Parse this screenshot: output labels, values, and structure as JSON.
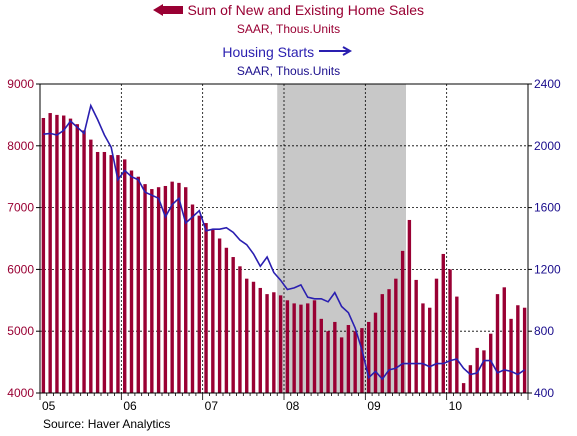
{
  "legend": {
    "bars_label": "Sum of New and Existing Home Sales",
    "bars_units": "SAAR, Thous.Units",
    "line_label": "Housing Starts",
    "line_units": "SAAR, Thous.Units"
  },
  "source": "Source: Haver Analytics",
  "colors": {
    "bars": "#990033",
    "line": "#2a1fb0",
    "recession": "#c8c8c8",
    "left_axis_text": "#990033",
    "right_axis_text": "#1a0d8c"
  },
  "chart_data": {
    "type": "bar",
    "x_tick_labels": [
      "05",
      "06",
      "07",
      "08",
      "09",
      "10"
    ],
    "x_start_year": 2005,
    "recession_shading": {
      "start": "2007-12",
      "end": "2009-06"
    },
    "ylim_left": [
      4000,
      9000
    ],
    "yticks_left": [
      4000,
      5000,
      6000,
      7000,
      8000,
      9000
    ],
    "ylim_right": [
      400,
      2400
    ],
    "yticks_right": [
      400,
      800,
      1200,
      1600,
      2000,
      2400
    ],
    "grid": "dashed",
    "months": [
      "2005-01",
      "2005-02",
      "2005-03",
      "2005-04",
      "2005-05",
      "2005-06",
      "2005-07",
      "2005-08",
      "2005-09",
      "2005-10",
      "2005-11",
      "2005-12",
      "2006-01",
      "2006-02",
      "2006-03",
      "2006-04",
      "2006-05",
      "2006-06",
      "2006-07",
      "2006-08",
      "2006-09",
      "2006-10",
      "2006-11",
      "2006-12",
      "2007-01",
      "2007-02",
      "2007-03",
      "2007-04",
      "2007-05",
      "2007-06",
      "2007-07",
      "2007-08",
      "2007-09",
      "2007-10",
      "2007-11",
      "2007-12",
      "2008-01",
      "2008-02",
      "2008-03",
      "2008-04",
      "2008-05",
      "2008-06",
      "2008-07",
      "2008-08",
      "2008-09",
      "2008-10",
      "2008-11",
      "2008-12",
      "2009-01",
      "2009-02",
      "2009-03",
      "2009-04",
      "2009-05",
      "2009-06",
      "2009-07",
      "2009-08",
      "2009-09",
      "2009-10",
      "2009-11",
      "2009-12",
      "2010-01",
      "2010-02",
      "2010-03",
      "2010-04",
      "2010-05",
      "2010-06",
      "2010-07",
      "2010-08",
      "2010-09",
      "2010-10",
      "2010-11",
      "2010-12"
    ],
    "series": [
      {
        "name": "Sum of New and Existing Home Sales",
        "axis": "left",
        "kind": "bar",
        "values": [
          8450,
          8530,
          8500,
          8490,
          8440,
          8350,
          8250,
          8100,
          7900,
          7900,
          7850,
          7850,
          7780,
          7600,
          7500,
          7380,
          7300,
          7330,
          7350,
          7420,
          7400,
          7330,
          7050,
          6870,
          6750,
          6650,
          6500,
          6350,
          6200,
          6050,
          5850,
          5800,
          5700,
          5600,
          5630,
          5580,
          5500,
          5450,
          5430,
          5450,
          5500,
          5200,
          5000,
          5150,
          4900,
          5100,
          5000,
          5050,
          5150,
          5300,
          5600,
          5680,
          5850,
          6300,
          6800,
          5830,
          5450,
          5380,
          5850,
          6250,
          6000,
          5560,
          4160,
          4450,
          4730,
          4690,
          4960,
          5600,
          5710,
          5200,
          5420,
          5380
        ]
      },
      {
        "name": "Housing Starts",
        "axis": "right",
        "kind": "line",
        "values": [
          2075,
          2080,
          2070,
          2100,
          2160,
          2120,
          2080,
          2260,
          2170,
          2070,
          1990,
          1780,
          1840,
          1800,
          1780,
          1700,
          1680,
          1660,
          1540,
          1620,
          1660,
          1500,
          1540,
          1580,
          1450,
          1460,
          1460,
          1470,
          1440,
          1390,
          1360,
          1300,
          1220,
          1280,
          1180,
          1130,
          1070,
          1080,
          1100,
          1020,
          1010,
          1010,
          990,
          1050,
          960,
          920,
          820,
          680,
          500,
          540,
          490,
          550,
          560,
          590,
          590,
          590,
          590,
          570,
          590,
          590,
          610,
          620,
          560,
          520,
          530,
          610,
          610,
          530,
          550,
          540,
          520,
          550
        ]
      }
    ]
  }
}
